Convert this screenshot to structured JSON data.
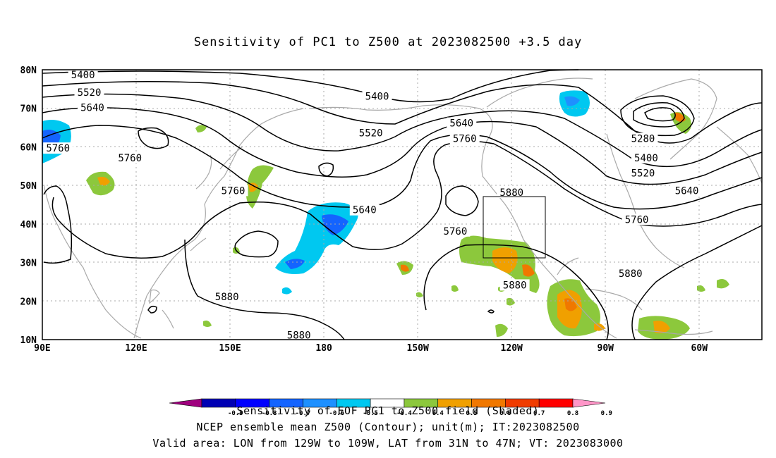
{
  "title": "Sensitivity of PC1 to Z500 at 2023082500 +3.5 day",
  "footer": {
    "line1": "Sensitivity of EOF PC1 to Z500 field (Shaded)",
    "line2": "NCEP ensemble mean Z500 (Contour); unit(m); IT:2023082500",
    "line3": "Valid area: LON from 129W to 109W, LAT from 31N to 47N; VT: 2023083000"
  },
  "axes": {
    "lat_labels": [
      "80N",
      "70N",
      "60N",
      "50N",
      "40N",
      "30N",
      "20N",
      "10N"
    ],
    "lat_values": [
      80,
      70,
      60,
      50,
      40,
      30,
      20,
      10
    ],
    "lon_labels": [
      "90E",
      "120E",
      "150E",
      "180",
      "150W",
      "120W",
      "90W",
      "60W"
    ],
    "lon_values": [
      90,
      120,
      150,
      180,
      210,
      240,
      270,
      300
    ]
  },
  "domain": {
    "lon_min": 90,
    "lon_max": 320,
    "lat_min": 10,
    "lat_max": 80
  },
  "valid_box": {
    "lon_w": 231,
    "lon_e": 251,
    "lat_s": 31,
    "lat_n": 47
  },
  "colorbar": {
    "labels": [
      "-0.9",
      "-0.8",
      "-0.7",
      "-0.6",
      "-0.5",
      "-0.4",
      "0.4",
      "0.5",
      "0.6",
      "0.7",
      "0.8",
      "0.9"
    ],
    "colors": [
      "#a0007f",
      "#0000b4",
      "#0000ff",
      "#1464ff",
      "#1e90ff",
      "#00c8f0",
      "#ffffff",
      "#8cc83c",
      "#f0a000",
      "#f07800",
      "#f03c00",
      "#ff0000",
      "#ff96c8"
    ]
  },
  "contours": [
    {
      "label": "5400",
      "lon": 103,
      "lat": 78.5
    },
    {
      "label": "5520",
      "lon": 105,
      "lat": 74
    },
    {
      "label": "5640",
      "lon": 106,
      "lat": 70
    },
    {
      "label": "5400",
      "lon": 197,
      "lat": 73
    },
    {
      "label": "5520",
      "lon": 195,
      "lat": 63.5
    },
    {
      "label": "5640",
      "lon": 224,
      "lat": 66
    },
    {
      "label": "5760",
      "lon": 225,
      "lat": 62
    },
    {
      "label": "5280",
      "lon": 282,
      "lat": 62
    },
    {
      "label": "5400",
      "lon": 283,
      "lat": 57
    },
    {
      "label": "5520",
      "lon": 282,
      "lat": 53
    },
    {
      "label": "5640",
      "lon": 296,
      "lat": 48.5
    },
    {
      "label": "5760",
      "lon": 95,
      "lat": 59.5
    },
    {
      "label": "5760",
      "lon": 118,
      "lat": 57
    },
    {
      "label": "5760",
      "lon": 151,
      "lat": 48.5
    },
    {
      "label": "5640",
      "lon": 193,
      "lat": 43.5
    },
    {
      "label": "5880",
      "lon": 240,
      "lat": 48
    },
    {
      "label": "5760",
      "lon": 222,
      "lat": 38
    },
    {
      "label": "5760",
      "lon": 280,
      "lat": 41
    },
    {
      "label": "5880",
      "lon": 241,
      "lat": 24
    },
    {
      "label": "5880",
      "lon": 278,
      "lat": 27
    },
    {
      "label": "5880",
      "lon": 149,
      "lat": 21
    },
    {
      "label": "5880",
      "lon": 172,
      "lat": 11
    }
  ]
}
